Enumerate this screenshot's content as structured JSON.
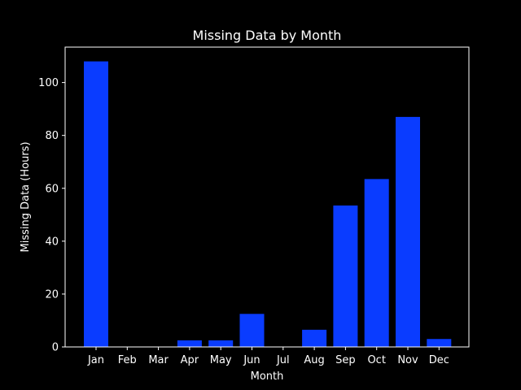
{
  "colors": {
    "background": "#000000",
    "foreground": "#ffffff",
    "bar": "#0a3cff"
  },
  "chart_data": {
    "type": "bar",
    "title": "Missing Data by Month",
    "xlabel": "Month",
    "ylabel": "Missing Data (Hours)",
    "categories": [
      "Jan",
      "Feb",
      "Mar",
      "Apr",
      "May",
      "Jun",
      "Jul",
      "Aug",
      "Sep",
      "Oct",
      "Nov",
      "Dec"
    ],
    "values": [
      108,
      0,
      0,
      2.5,
      2.5,
      12.5,
      0,
      6.5,
      53.5,
      63.5,
      87,
      3
    ],
    "ylim": [
      0,
      113.4
    ],
    "yticks": [
      0,
      20,
      40,
      60,
      80,
      100
    ],
    "grid": false,
    "legend": "none"
  }
}
